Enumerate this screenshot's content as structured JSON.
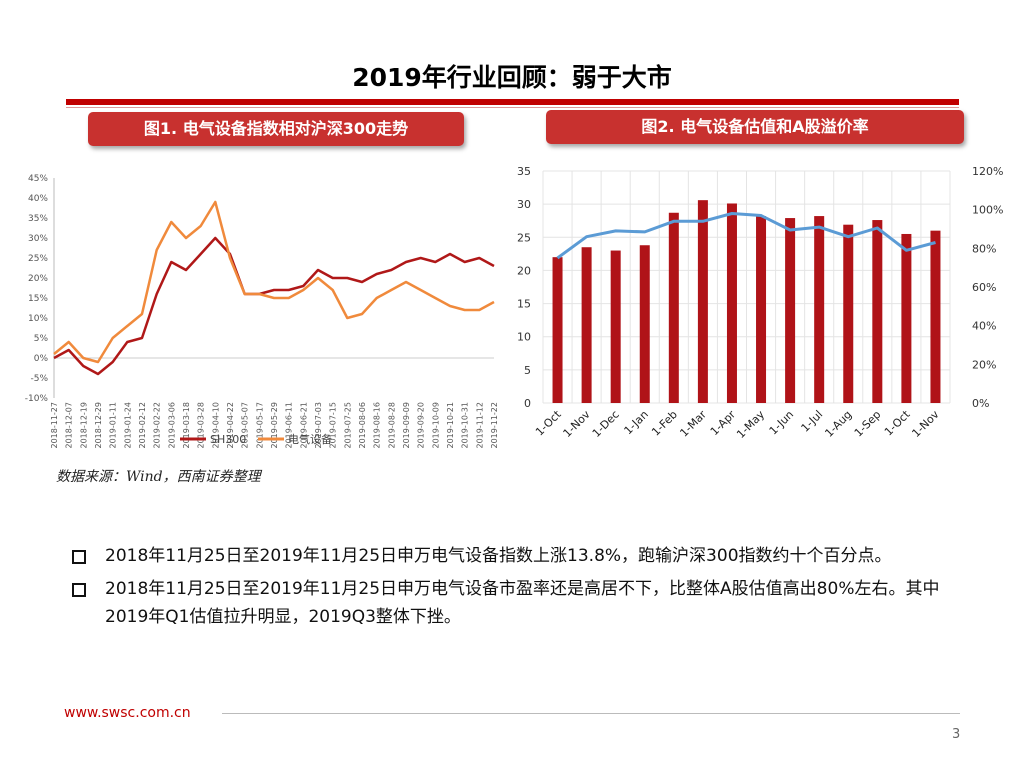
{
  "title": "2019年行业回顾：弱于大市",
  "fig1_title": "图1. 电气设备指数相对沪深300走势",
  "fig2_title": "图2. 电气设备估值和A股溢价率",
  "source": "数据来源：Wind，西南证券整理",
  "bullets": [
    "2018年11月25日至2019年11月25日申万电气设备指数上涨13.8%，跑输沪深300指数约十个百分点。",
    "2018年11月25日至2019年11月25日申万电气设备市盈率还是高居不下，比整体A股估值高出80%左右。其中2019年Q1估值拉升明显，2019Q3整体下挫。"
  ],
  "footer": {
    "url": "www.swsc.com.cn",
    "page": "3"
  },
  "colors": {
    "brand_red": "#c00000",
    "sh300": "#b01818",
    "elec": "#f08a3c",
    "bar": "#b01318",
    "premium_line": "#5b9bd5"
  },
  "chart_data": [
    {
      "type": "line",
      "title": "图1. 电气设备指数相对沪深300走势",
      "x": [
        "2018-11-27",
        "2018-12-07",
        "2018-12-19",
        "2018-12-29",
        "2019-01-11",
        "2019-01-24",
        "2019-02-12",
        "2019-02-22",
        "2019-03-06",
        "2019-03-18",
        "2019-03-28",
        "2019-04-10",
        "2019-04-22",
        "2019-05-07",
        "2019-05-17",
        "2019-05-29",
        "2019-06-11",
        "2019-06-21",
        "2019-07-03",
        "2019-07-15",
        "2019-07-25",
        "2019-08-06",
        "2019-08-16",
        "2019-08-28",
        "2019-09-09",
        "2019-09-20",
        "2019-10-09",
        "2019-10-21",
        "2019-10-31",
        "2019-11-12",
        "2019-11-22"
      ],
      "series": [
        {
          "name": "SH300",
          "values": [
            0,
            2,
            -2,
            -4,
            -1,
            4,
            5,
            16,
            24,
            22,
            26,
            30,
            26,
            16,
            16,
            17,
            17,
            18,
            22,
            20,
            20,
            19,
            21,
            22,
            24,
            25,
            24,
            26,
            24,
            25,
            23
          ]
        },
        {
          "name": "电气设备",
          "values": [
            1,
            4,
            0,
            -1,
            5,
            8,
            11,
            27,
            34,
            30,
            33,
            39,
            25,
            16,
            16,
            15,
            15,
            17,
            20,
            17,
            10,
            11,
            15,
            17,
            19,
            17,
            15,
            13,
            12,
            12,
            14
          ]
        }
      ],
      "yticks": [
        "45%",
        "40%",
        "35%",
        "30%",
        "25%",
        "20%",
        "15%",
        "10%",
        "5%",
        "0%",
        "-5%",
        "-10%"
      ],
      "ylim": [
        -10,
        45
      ],
      "legend": "bottom"
    },
    {
      "type": "bar",
      "title": "图2. 电气设备估值和A股溢价率",
      "categories": [
        "1-Oct",
        "1-Nov",
        "1-Dec",
        "1-Jan",
        "1-Feb",
        "1-Mar",
        "1-Apr",
        "1-May",
        "1-Jun",
        "1-Jul",
        "1-Aug",
        "1-Sep",
        "1-Oct",
        "1-Nov"
      ],
      "series": [
        {
          "name": "PE",
          "axis": "left",
          "values": [
            22,
            23.5,
            23,
            23.8,
            28.7,
            30.6,
            30.1,
            28.2,
            27.9,
            28.2,
            26.9,
            27.6,
            25.5,
            26
          ]
        },
        {
          "name": "溢价率",
          "axis": "right",
          "type": "line",
          "values": [
            75,
            86,
            89,
            88.5,
            94,
            94,
            98,
            97,
            89.5,
            91,
            86,
            90.5,
            79,
            83
          ]
        }
      ],
      "y_left": {
        "ticks": [
          "35",
          "30",
          "25",
          "20",
          "15",
          "10",
          "5",
          "0"
        ],
        "ylim": [
          0,
          35
        ]
      },
      "y_right": {
        "ticks": [
          "120%",
          "100%",
          "80%",
          "60%",
          "40%",
          "20%",
          "0%"
        ],
        "ylim": [
          0,
          120
        ]
      }
    }
  ]
}
